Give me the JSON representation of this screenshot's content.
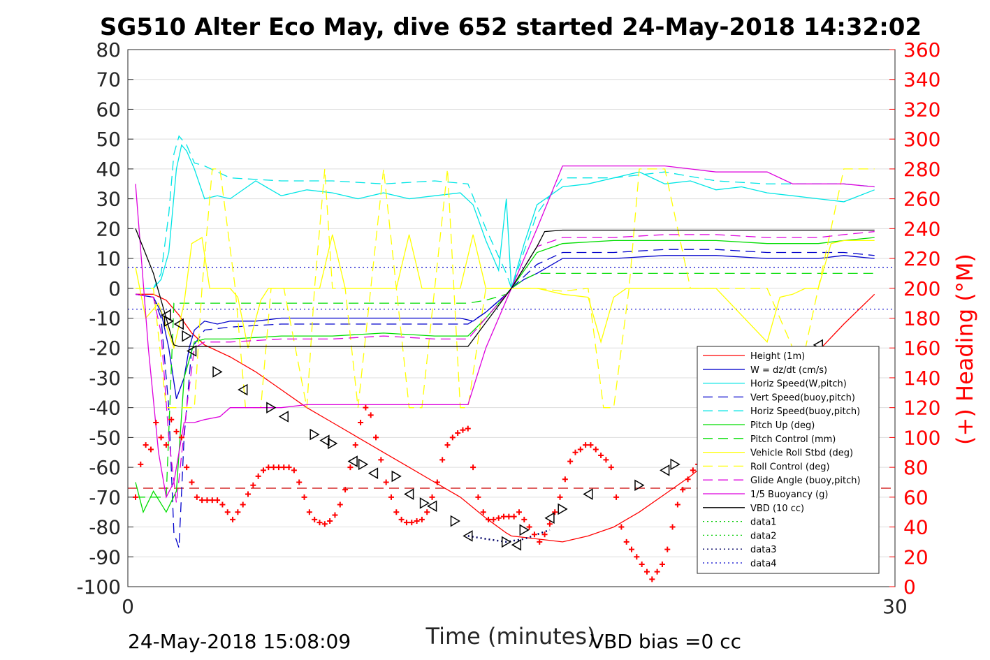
{
  "title": "SG510 Alter Eco May, dive 652 started 24-May-2018 14:32:02",
  "footer": {
    "timestamp": "24-May-2018 15:08:09",
    "vbd_bias": "VBD bias =0 cc"
  },
  "chart_data": {
    "type": "line",
    "title": "SG510 Alter Eco May, dive 652 started 24-May-2018 14:32:02",
    "xlabel": "Time (minutes)",
    "ylabel": "",
    "ylabel_right": "(+) Heading (°M)",
    "xlim": [
      0,
      30
    ],
    "ylim": [
      -100,
      80
    ],
    "ylim_right": [
      0,
      360
    ],
    "x_ticks": [
      "0",
      "30"
    ],
    "y_ticks": [
      "80",
      "70",
      "60",
      "50",
      "40",
      "30",
      "20",
      "10",
      "0",
      "-10",
      "-20",
      "-30",
      "-40",
      "-50",
      "-60",
      "-70",
      "-80",
      "-90",
      "-100"
    ],
    "y_ticks_right": [
      "360",
      "340",
      "320",
      "300",
      "280",
      "260",
      "240",
      "220",
      "200",
      "180",
      "160",
      "140",
      "120",
      "100",
      "80",
      "60",
      "40",
      "20",
      "0"
    ],
    "grid": true,
    "legend_position": "bottom-right",
    "colors": {
      "height": "#ff0000",
      "w": "#0000cc",
      "horiz": "#00e5e5",
      "vert_buoy": "#0000cc",
      "horiz_buoy": "#00e5e5",
      "pitch": "#00dd00",
      "pitch_ctrl": "#00dd00",
      "roll": "#ffff00",
      "roll_ctrl": "#ffff00",
      "glide": "#dd00dd",
      "buoy": "#dd00dd",
      "vbd": "#000000",
      "data1": "#00cc00",
      "data2": "#00cc00",
      "data3": "#000066",
      "data4": "#0000cc",
      "heading": "#ff0000"
    },
    "series": [
      {
        "name": "Height (1m)",
        "style": "solid",
        "color": "#ff0000",
        "x": [
          0.3,
          1,
          1.5,
          2,
          2.5,
          3,
          4,
          5,
          6,
          7,
          8,
          9,
          10,
          11,
          12,
          13,
          14,
          14.8,
          15,
          16,
          17,
          18,
          19,
          20,
          21,
          22,
          23,
          24,
          25,
          26,
          27,
          28,
          29.2
        ],
        "y": [
          -2,
          -2,
          -4,
          -9,
          -15,
          -19,
          -23,
          -28,
          -34,
          -40,
          -45,
          -50,
          -55,
          -60,
          -65,
          -70,
          -77,
          -82,
          -83,
          -84,
          -85,
          -83,
          -80,
          -75,
          -69,
          -63,
          -56,
          -49,
          -40,
          -31,
          -21,
          -12,
          -2
        ]
      },
      {
        "name": "W = dz/dt (cm/s)",
        "style": "solid",
        "color": "#0000cc",
        "x": [
          0.3,
          1,
          1.3,
          1.6,
          1.9,
          2.2,
          2.4,
          2.6,
          3,
          3.5,
          4,
          5,
          6,
          8,
          10,
          12,
          13,
          13.5,
          14,
          14.8,
          15,
          15.5,
          16,
          17,
          18,
          19,
          21,
          23,
          25,
          27,
          28,
          29.2
        ],
        "y": [
          -2,
          -3,
          -8,
          -20,
          -37,
          -30,
          -20,
          -14,
          -11,
          -12,
          -11,
          -11,
          -10,
          -10,
          -10,
          -10,
          -10,
          -11,
          -8,
          -2,
          0,
          3,
          5,
          10,
          10,
          10,
          11,
          11,
          10,
          10,
          11,
          10
        ]
      },
      {
        "name": "Horiz Speed(W,pitch)",
        "style": "solid",
        "color": "#00e5e5",
        "x": [
          0.3,
          1,
          1.3,
          1.6,
          1.9,
          2.1,
          2.3,
          2.6,
          3,
          3.5,
          4,
          5,
          6,
          7,
          8,
          9,
          10,
          11,
          12,
          13,
          13.5,
          14,
          14.5,
          14.8,
          15,
          15.5,
          16,
          17,
          18,
          19,
          20,
          21,
          22,
          23,
          24,
          25,
          26,
          27,
          28,
          29.2
        ],
        "y": [
          0,
          0,
          3,
          12,
          40,
          48,
          46,
          40,
          30,
          31,
          30,
          36,
          31,
          33,
          32,
          30,
          32,
          30,
          31,
          32,
          28,
          16,
          6,
          30,
          0,
          15,
          28,
          34,
          35,
          37,
          39,
          35,
          36,
          33,
          34,
          32,
          31,
          30,
          29,
          33
        ]
      },
      {
        "name": "Vert Speed(buoy,pitch)",
        "style": "dashed",
        "color": "#0000cc",
        "x": [
          0.3,
          1,
          1.3,
          1.6,
          1.8,
          2,
          2.2,
          2.5,
          3,
          4,
          6,
          8,
          10,
          12,
          13.3,
          14,
          14.8,
          15,
          16,
          17,
          19,
          21,
          23,
          25,
          27,
          28,
          29.2
        ],
        "y": [
          -2,
          -3,
          -10,
          -40,
          -82,
          -87,
          -50,
          -20,
          -14,
          -13,
          -12,
          -12,
          -12,
          -12,
          -12,
          -8,
          -2,
          0,
          8,
          12,
          12,
          13,
          13,
          12,
          12,
          12,
          11
        ]
      },
      {
        "name": "Horiz Speed(buoy,pitch)",
        "style": "dashed",
        "color": "#00e5e5",
        "x": [
          0.3,
          1,
          1.3,
          1.6,
          1.8,
          2,
          2.3,
          2.6,
          3,
          4,
          6,
          8,
          10,
          12,
          13.3,
          14,
          14.8,
          15,
          16,
          17,
          19,
          21,
          23,
          25,
          27,
          28,
          29.2
        ],
        "y": [
          0,
          0,
          5,
          25,
          45,
          51,
          48,
          42,
          41,
          37,
          36,
          36,
          35,
          36,
          35,
          20,
          5,
          0,
          25,
          37,
          37,
          39,
          36,
          35,
          35,
          35,
          34
        ]
      },
      {
        "name": "Pitch Up (deg)",
        "style": "solid",
        "color": "#00dd00",
        "x": [
          0.3,
          0.6,
          1,
          1.5,
          1.9,
          2.2,
          2.6,
          3,
          4,
          6,
          8,
          10,
          12,
          13.3,
          14,
          14.8,
          15,
          16,
          17,
          19,
          21,
          23,
          25,
          27,
          28,
          29.2
        ],
        "y": [
          -65,
          -75,
          -68,
          -75,
          -68,
          -30,
          -18,
          -17,
          -17,
          -16,
          -16,
          -15,
          -16,
          -16,
          -10,
          -2,
          0,
          12,
          15,
          16,
          16,
          16,
          15,
          15,
          16,
          17
        ]
      },
      {
        "name": "Pitch Control (mm)",
        "style": "dashed",
        "color": "#00dd00",
        "x": [
          0.3,
          1.5,
          1.8,
          2,
          6,
          10,
          13.3,
          14,
          14.8,
          15,
          15.5,
          16,
          20,
          24,
          28,
          29.2
        ],
        "y": [
          -70,
          -70,
          -5,
          -5,
          -5,
          -5,
          -5,
          -4,
          -2,
          0,
          3,
          5,
          5,
          5,
          5,
          5
        ]
      },
      {
        "name": "Vehicle Roll Stbd (deg)",
        "style": "solid",
        "color": "#ffff00",
        "x": [
          0.3,
          0.7,
          1.2,
          1.8,
          2.2,
          2.5,
          2.9,
          3.2,
          3.6,
          4,
          4.3,
          4.7,
          5.2,
          5.5,
          6,
          6.5,
          7,
          7.5,
          8,
          8.5,
          9,
          9.5,
          10,
          10.5,
          11,
          11.5,
          12,
          12.5,
          13,
          13.5,
          14,
          14.8,
          15,
          16,
          17,
          18,
          18.5,
          19,
          19.5,
          20,
          21,
          22,
          23,
          25,
          25.5,
          26,
          26.5,
          27,
          27.5,
          28,
          29.2
        ],
        "y": [
          7,
          -10,
          -5,
          -20,
          -5,
          15,
          17,
          0,
          0,
          0,
          -3,
          -20,
          -4,
          0,
          0,
          0,
          0,
          0,
          18,
          0,
          0,
          0,
          0,
          0,
          18,
          0,
          0,
          0,
          0,
          18,
          0,
          0,
          0,
          0,
          -2,
          -3,
          -18,
          -3,
          0,
          0,
          0,
          0,
          0,
          -18,
          -3,
          -2,
          0,
          0,
          15,
          16,
          16
        ]
      },
      {
        "name": "Roll Control (deg)",
        "style": "dashed",
        "color": "#ffff00",
        "x": [
          0.3,
          1,
          1.5,
          2,
          2.6,
          2.9,
          3.3,
          3.6,
          4.2,
          4.6,
          5.2,
          5.6,
          6.1,
          7,
          7.3,
          7.7,
          8,
          8.5,
          9,
          9.5,
          10,
          10.5,
          11,
          11.5,
          12,
          12.5,
          13,
          13.3,
          14,
          14.8,
          15,
          16,
          17,
          18,
          18.6,
          19,
          19.6,
          20,
          21,
          22,
          23,
          24,
          25,
          26,
          26.5,
          27,
          28,
          29.2
        ],
        "y": [
          0,
          0,
          -40,
          -40,
          -40,
          0,
          40,
          40,
          0,
          -40,
          -40,
          0,
          0,
          -40,
          0,
          40,
          0,
          0,
          -40,
          0,
          40,
          0,
          -40,
          -40,
          0,
          40,
          -40,
          -40,
          0,
          0,
          0,
          0,
          -1,
          0,
          -40,
          -40,
          0,
          40,
          40,
          0,
          0,
          0,
          0,
          -20,
          -20,
          0,
          40,
          40
        ]
      },
      {
        "name": "Glide Angle (buoy,pitch)",
        "style": "dashed",
        "color": "#dd00dd",
        "x": [
          0.3,
          1,
          1.3,
          1.6,
          1.9,
          2.3,
          2.6,
          3,
          4,
          6,
          8,
          10,
          12,
          13.3,
          14,
          14.8,
          15,
          16,
          17,
          19,
          21,
          23,
          25,
          27,
          28,
          29.2
        ],
        "y": [
          -2,
          -3,
          -15,
          -50,
          -72,
          -40,
          -20,
          -18,
          -18,
          -17,
          -17,
          -16,
          -17,
          -17,
          -10,
          -2,
          0,
          14,
          17,
          17,
          18,
          18,
          17,
          17,
          18,
          19
        ]
      },
      {
        "name": "1/5 Buoyancy (g)",
        "style": "solid",
        "color": "#dd00dd",
        "x": [
          0.3,
          0.8,
          1.2,
          1.5,
          1.8,
          2.2,
          2.6,
          3,
          3.6,
          4,
          5,
          6,
          7,
          8,
          9,
          10,
          11,
          12,
          13,
          13.3,
          14,
          15,
          16,
          17,
          18,
          19,
          20,
          21,
          22,
          23,
          24,
          25,
          26,
          27,
          28,
          29.2
        ],
        "y": [
          35,
          -20,
          -55,
          -70,
          -65,
          -45,
          -45,
          -44,
          -43,
          -40,
          -40,
          -40,
          -39,
          -39,
          -39,
          -39,
          -39,
          -39,
          -39,
          -39,
          -20,
          0,
          20,
          41,
          41,
          41,
          41,
          41,
          40,
          39,
          39,
          39,
          35,
          35,
          35,
          34
        ]
      },
      {
        "name": "VBD (10 cc)",
        "style": "solid",
        "color": "#000000",
        "x": [
          0.3,
          1,
          1.5,
          1.8,
          2,
          3,
          6,
          9,
          12,
          13.3,
          15,
          16,
          16.3,
          17,
          20,
          24,
          28,
          29.2
        ],
        "y": [
          20,
          5,
          -10,
          -19,
          -19.5,
          -19.5,
          -19.5,
          -19.5,
          -19.5,
          -19.5,
          0,
          14,
          19,
          19.5,
          19.5,
          19.5,
          19.5,
          19.5
        ]
      },
      {
        "name": "data1",
        "style": "dotted",
        "color": "#00cc00",
        "x": [],
        "y": []
      },
      {
        "name": "data2",
        "style": "dotted",
        "color": "#00cc00",
        "x": [],
        "y": []
      },
      {
        "name": "data3",
        "style": "dotted",
        "color": "#000066",
        "x": [
          13.3,
          14,
          14.8,
          15.5,
          16.5
        ],
        "y": [
          -83,
          -84,
          -85,
          -84,
          -81
        ]
      },
      {
        "name": "data4",
        "style": "dotted",
        "color": "#0000cc",
        "x": [],
        "y": []
      }
    ],
    "reference_lines": [
      {
        "y": 7,
        "style": "dotted",
        "color": "#0000cc"
      },
      {
        "y": -7,
        "style": "dotted",
        "color": "#0000cc"
      },
      {
        "y": -67,
        "style": "dashed",
        "color": "#cc0000"
      }
    ],
    "heading_points": {
      "style": "plus",
      "color": "#ff0000",
      "axis": "right",
      "x": [
        0.3,
        0.5,
        0.7,
        0.9,
        1.1,
        1.3,
        1.5,
        1.7,
        1.9,
        2.1,
        2.3,
        2.5,
        2.7,
        2.9,
        3.1,
        3.3,
        3.5,
        3.7,
        3.9,
        4.1,
        4.3,
        4.5,
        4.7,
        4.9,
        5.1,
        5.3,
        5.5,
        5.7,
        5.9,
        6.1,
        6.3,
        6.5,
        6.7,
        6.9,
        7.1,
        7.3,
        7.5,
        7.7,
        7.9,
        8.1,
        8.3,
        8.5,
        8.7,
        8.9,
        9.1,
        9.3,
        9.5,
        9.7,
        9.9,
        10.1,
        10.3,
        10.5,
        10.7,
        10.9,
        11.1,
        11.3,
        11.5,
        11.7,
        11.9,
        12.1,
        12.3,
        12.5,
        12.7,
        12.9,
        13.1,
        13.3,
        13.5,
        13.7,
        13.9,
        14.1,
        14.3,
        14.5,
        14.7,
        14.9,
        15.1,
        15.3,
        15.5,
        15.7,
        15.9,
        16.1,
        16.3,
        16.5,
        16.7,
        16.9,
        17.1,
        17.3,
        17.5,
        17.7,
        17.9,
        18.1,
        18.3,
        18.5,
        18.7,
        18.9,
        19.1,
        19.3,
        19.5,
        19.7,
        19.9,
        20.1,
        20.3,
        20.5,
        20.7,
        20.9,
        21.1,
        21.3,
        21.5,
        21.7,
        21.9,
        22.1,
        22.3,
        22.5,
        22.7,
        22.9,
        23.1,
        23.3,
        23.5
      ],
      "y": [
        60,
        82,
        95,
        92,
        110,
        100,
        95,
        112,
        104,
        100,
        80,
        70,
        60,
        58,
        58,
        58,
        58,
        55,
        50,
        45,
        50,
        55,
        62,
        68,
        74,
        78,
        80,
        80,
        80,
        80,
        80,
        78,
        70,
        60,
        50,
        45,
        43,
        42,
        44,
        48,
        55,
        65,
        80,
        95,
        110,
        120,
        115,
        100,
        85,
        70,
        60,
        50,
        45,
        43,
        43,
        44,
        45,
        50,
        60,
        70,
        85,
        95,
        100,
        103,
        105,
        106,
        80,
        60,
        50,
        45,
        45,
        46,
        47,
        47,
        47,
        50,
        45,
        40,
        35,
        30,
        35,
        42,
        50,
        60,
        72,
        84,
        90,
        92,
        95,
        95,
        92,
        88,
        85,
        80,
        60,
        40,
        30,
        25,
        20,
        15,
        10,
        5,
        10,
        15,
        25,
        40,
        55,
        65,
        72,
        78,
        82,
        80,
        78,
        77,
        76,
        75,
        76
      ]
    },
    "triangle_markers": {
      "style": "triangle",
      "color": "#000000",
      "x": [
        1.5,
        1.6,
        2,
        2.3,
        2.5,
        3.5,
        4.5,
        5.6,
        6.1,
        7.3,
        7.7,
        8,
        8.8,
        9.2,
        9.6,
        10.5,
        11,
        11.6,
        11.9,
        12.8,
        13.3,
        14.8,
        15.2,
        15.5,
        16.5,
        17,
        18,
        20,
        21,
        21.4,
        25,
        26.7,
        27
      ],
      "y": [
        -9,
        -11,
        -12,
        -16,
        -21,
        -28,
        -34,
        -40,
        -43,
        -49,
        -51,
        -52,
        -58,
        -59,
        -62,
        -63,
        -69,
        -72,
        -73,
        -78,
        -83,
        -85,
        -86,
        -81,
        -77,
        -74,
        -69,
        -66,
        -61,
        -59,
        -49,
        -44,
        -19
      ]
    }
  }
}
